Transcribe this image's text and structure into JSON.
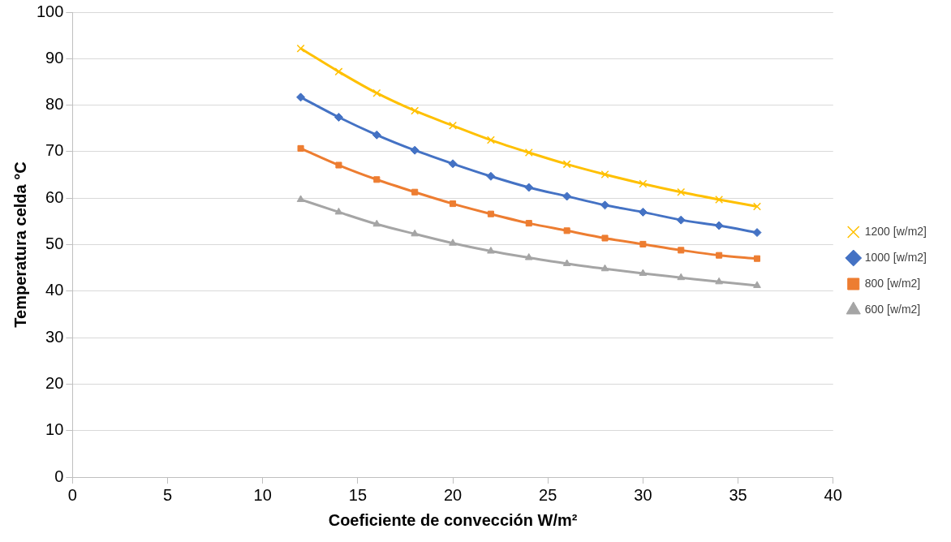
{
  "chart_data": {
    "type": "line",
    "xlabel": "Coeficiente de convección W/m²",
    "ylabel": "Temperatura celda °C",
    "x": [
      12,
      14,
      16,
      18,
      20,
      22,
      24,
      26,
      28,
      30,
      32,
      34,
      36
    ],
    "xlim": [
      0,
      40
    ],
    "xticks": [
      0,
      5,
      10,
      15,
      20,
      25,
      30,
      35,
      40
    ],
    "ylim": [
      0,
      100
    ],
    "yticks": [
      0,
      10,
      20,
      30,
      40,
      50,
      60,
      70,
      80,
      90,
      100
    ],
    "grid": "y",
    "legend": "right",
    "line_style": "solid",
    "series": [
      {
        "name": "1200 [w/m2]",
        "color": "#ffc000",
        "marker": "cross",
        "values": [
          92.2,
          87.2,
          82.6,
          78.8,
          75.6,
          72.5,
          69.8,
          67.3,
          65.1,
          63.1,
          61.3,
          59.7,
          58.2
        ]
      },
      {
        "name": "1000 [w/m2]",
        "color": "#4472c4",
        "marker": "diamond",
        "values": [
          81.7,
          77.4,
          73.6,
          70.3,
          67.4,
          64.7,
          62.3,
          60.4,
          58.5,
          57.0,
          55.3,
          54.1,
          52.6
        ]
      },
      {
        "name": "800 [w/m2]",
        "color": "#ed7d31",
        "marker": "square",
        "values": [
          70.7,
          67.1,
          64.0,
          61.3,
          58.8,
          56.6,
          54.6,
          53.0,
          51.4,
          50.1,
          48.8,
          47.7,
          47.0
        ]
      },
      {
        "name": "600 [w/m2]",
        "color": "#a5a5a5",
        "marker": "triangle",
        "values": [
          59.7,
          57.0,
          54.4,
          52.3,
          50.3,
          48.6,
          47.2,
          45.9,
          44.8,
          43.8,
          42.9,
          42.0,
          41.2
        ]
      }
    ]
  }
}
